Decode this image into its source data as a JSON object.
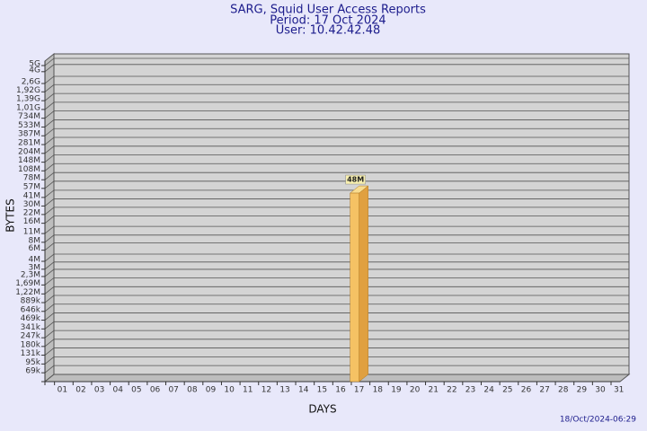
{
  "chart_data": {
    "type": "bar",
    "title": "SARG, Squid User Access Reports",
    "subtitle": "Period: 17 Oct 2024",
    "user": "User: 10.42.42.48",
    "x_label": "DAYS",
    "y_label": "BYTES",
    "footer": "18/Oct/2024-06:29",
    "categories": [
      "01",
      "02",
      "03",
      "04",
      "05",
      "06",
      "07",
      "08",
      "09",
      "10",
      "11",
      "12",
      "13",
      "14",
      "15",
      "16",
      "17",
      "18",
      "19",
      "20",
      "21",
      "22",
      "23",
      "24",
      "25",
      "26",
      "27",
      "28",
      "29",
      "30",
      "31"
    ],
    "values": [
      null,
      null,
      null,
      null,
      null,
      null,
      null,
      null,
      null,
      null,
      null,
      null,
      null,
      null,
      null,
      null,
      48000000,
      null,
      null,
      null,
      null,
      null,
      null,
      null,
      null,
      null,
      null,
      null,
      null,
      null,
      null
    ],
    "value_labels": [
      null,
      null,
      null,
      null,
      null,
      null,
      null,
      null,
      null,
      null,
      null,
      null,
      null,
      null,
      null,
      null,
      "48M",
      null,
      null,
      null,
      null,
      null,
      null,
      null,
      null,
      null,
      null,
      null,
      null,
      null,
      null
    ],
    "color": "#f5c264",
    "log_scale": true,
    "grid": true,
    "ylim": [
      50000,
      5000000000
    ],
    "yticks": [
      {
        "value": 69000,
        "label": "69k"
      },
      {
        "value": 95000,
        "label": "95k"
      },
      {
        "value": 131000,
        "label": "131k"
      },
      {
        "value": 180000,
        "label": "180k"
      },
      {
        "value": 247000,
        "label": "247k"
      },
      {
        "value": 341000,
        "label": "341k"
      },
      {
        "value": 469000,
        "label": "469k"
      },
      {
        "value": 646000,
        "label": "646k"
      },
      {
        "value": 889000,
        "label": "889k"
      },
      {
        "value": 1220000,
        "label": "1,22M"
      },
      {
        "value": 1690000,
        "label": "1,69M"
      },
      {
        "value": 2300000,
        "label": "2,3M"
      },
      {
        "value": 3000000,
        "label": "3M"
      },
      {
        "value": 4000000,
        "label": "4M"
      },
      {
        "value": 6000000,
        "label": "6M"
      },
      {
        "value": 8000000,
        "label": "8M"
      },
      {
        "value": 11000000,
        "label": "11M"
      },
      {
        "value": 16000000,
        "label": "16M"
      },
      {
        "value": 22000000,
        "label": "22M"
      },
      {
        "value": 30000000,
        "label": "30M"
      },
      {
        "value": 41000000,
        "label": "41M"
      },
      {
        "value": 57000000,
        "label": "57M"
      },
      {
        "value": 78000000,
        "label": "78M"
      },
      {
        "value": 108000000,
        "label": "108M"
      },
      {
        "value": 148000000,
        "label": "148M"
      },
      {
        "value": 204000000,
        "label": "204M"
      },
      {
        "value": 281000000,
        "label": "281M"
      },
      {
        "value": 387000000,
        "label": "387M"
      },
      {
        "value": 533000000,
        "label": "533M"
      },
      {
        "value": 734000000,
        "label": "734M"
      },
      {
        "value": 1010000000,
        "label": "1,01G"
      },
      {
        "value": 1390000000,
        "label": "1,39G"
      },
      {
        "value": 1920000000,
        "label": "1,92G"
      },
      {
        "value": 2600000000,
        "label": "2,6G"
      },
      {
        "value": 4000000000,
        "label": "4G"
      },
      {
        "value": 5000000000,
        "label": "5G"
      }
    ]
  }
}
